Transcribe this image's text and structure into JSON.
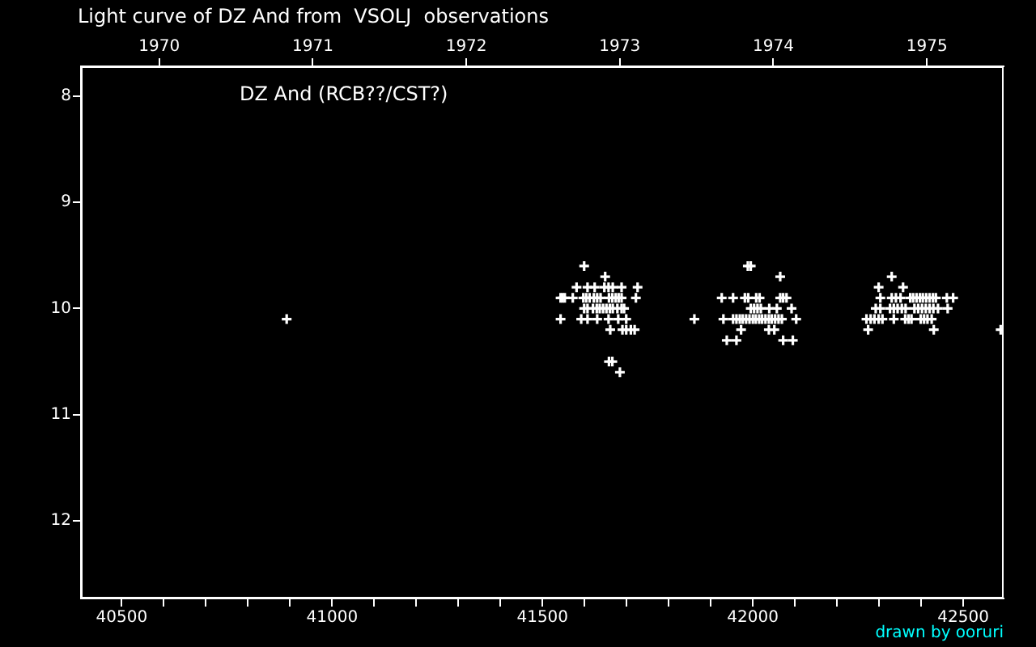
{
  "chart_data": {
    "type": "scatter",
    "title": "Light curve of DZ And from  VSOLJ  observations",
    "annotations": [
      "DZ And (RCB??/CST?)",
      "drawn by ooruri"
    ],
    "marker": "cross",
    "grid": false,
    "legend": false,
    "xlim": [
      40403,
      42596
    ],
    "xticks": [
      40500,
      {
        "value": 40600,
        "label": null
      },
      {
        "value": 40700,
        "label": null
      },
      {
        "value": 40800,
        "label": null
      },
      {
        "value": 40900,
        "label": null
      },
      41000,
      {
        "value": 41100,
        "label": null
      },
      {
        "value": 41200,
        "label": null
      },
      {
        "value": 41300,
        "label": null
      },
      {
        "value": 41400,
        "label": null
      },
      41500,
      {
        "value": 41600,
        "label": null
      },
      {
        "value": 41700,
        "label": null
      },
      {
        "value": 41800,
        "label": null
      },
      {
        "value": 41900,
        "label": null
      },
      42000,
      {
        "value": 42100,
        "label": null
      },
      {
        "value": 42200,
        "label": null
      },
      {
        "value": 42300,
        "label": null
      },
      {
        "value": 42400,
        "label": null
      },
      42500
    ],
    "x2lim": [
      1969.49,
      1975.5
    ],
    "x2ticks": [
      1970,
      1971,
      1972,
      1973,
      1974,
      1975
    ],
    "ylim": [
      12.73,
      7.72
    ],
    "yticks": [
      8,
      9,
      10,
      11,
      12
    ],
    "series": [
      {
        "color": "#ffffff",
        "x": [
          40892,
          41599,
          41649,
          41581,
          41607,
          41624,
          41647,
          41657,
          41667,
          41688,
          41726,
          41543,
          41548,
          41553,
          41572,
          41597,
          41604,
          41612,
          41622,
          41630,
          41638,
          41658,
          41666,
          41674,
          41681,
          41688,
          41722,
          41599,
          41607,
          41620,
          41629,
          41636,
          41644,
          41652,
          41660,
          41667,
          41678,
          41688,
          41694,
          41543,
          41592,
          41607,
          41630,
          41657,
          41680,
          41699,
          41661,
          41690,
          41699,
          41710,
          41719,
          41658,
          41666,
          41684,
          41861,
          41988,
          41995,
          42065,
          41926,
          41953,
          41981,
          41989,
          42008,
          42016,
          42065,
          42072,
          42080,
          41995,
          42003,
          42011,
          42019,
          42039,
          42057,
          42092,
          41930,
          41953,
          41961,
          41969,
          41976,
          41984,
          41992,
          42000,
          42007,
          42015,
          42022,
          42030,
          42038,
          42045,
          42053,
          42061,
          42069,
          42103,
          41972,
          42038,
          42051,
          41938,
          41961,
          42072,
          42095,
          42330,
          42299,
          42357,
          42303,
          42330,
          42340,
          42351,
          42374,
          42381,
          42389,
          42397,
          42404,
          42412,
          42420,
          42428,
          42435,
          42461,
          42476,
          42292,
          42303,
          42326,
          42335,
          42344,
          42354,
          42363,
          42384,
          42393,
          42402,
          42411,
          42420,
          42429,
          42440,
          42463,
          42270,
          42280,
          42289,
          42299,
          42308,
          42335,
          42362,
          42370,
          42377,
          42399,
          42407,
          42415,
          42425,
          42274,
          42430,
          42589
        ],
        "values": [
          10.1,
          9.6,
          9.7,
          9.8,
          9.8,
          9.8,
          9.8,
          9.8,
          9.8,
          9.8,
          9.8,
          9.9,
          9.9,
          9.9,
          9.9,
          9.9,
          9.9,
          9.9,
          9.9,
          9.9,
          9.9,
          9.9,
          9.9,
          9.9,
          9.9,
          9.9,
          9.9,
          10.0,
          10.0,
          10.0,
          10.0,
          10.0,
          10.0,
          10.0,
          10.0,
          10.0,
          10.0,
          10.0,
          10.0,
          10.1,
          10.1,
          10.1,
          10.1,
          10.1,
          10.1,
          10.1,
          10.2,
          10.2,
          10.2,
          10.2,
          10.2,
          10.5,
          10.5,
          10.6,
          10.1,
          9.6,
          9.6,
          9.7,
          9.9,
          9.9,
          9.9,
          9.9,
          9.9,
          9.9,
          9.9,
          9.9,
          9.9,
          10.0,
          10.0,
          10.0,
          10.0,
          10.0,
          10.0,
          10.0,
          10.1,
          10.1,
          10.1,
          10.1,
          10.1,
          10.1,
          10.1,
          10.1,
          10.1,
          10.1,
          10.1,
          10.1,
          10.1,
          10.1,
          10.1,
          10.1,
          10.1,
          10.1,
          10.2,
          10.2,
          10.2,
          10.3,
          10.3,
          10.3,
          10.3,
          9.7,
          9.8,
          9.8,
          9.9,
          9.9,
          9.9,
          9.9,
          9.9,
          9.9,
          9.9,
          9.9,
          9.9,
          9.9,
          9.9,
          9.9,
          9.9,
          9.9,
          9.9,
          10.0,
          10.0,
          10.0,
          10.0,
          10.0,
          10.0,
          10.0,
          10.0,
          10.0,
          10.0,
          10.0,
          10.0,
          10.0,
          10.0,
          10.0,
          10.1,
          10.1,
          10.1,
          10.1,
          10.1,
          10.1,
          10.1,
          10.1,
          10.1,
          10.1,
          10.1,
          10.1,
          10.1,
          10.2,
          10.2,
          10.2
        ]
      }
    ]
  }
}
